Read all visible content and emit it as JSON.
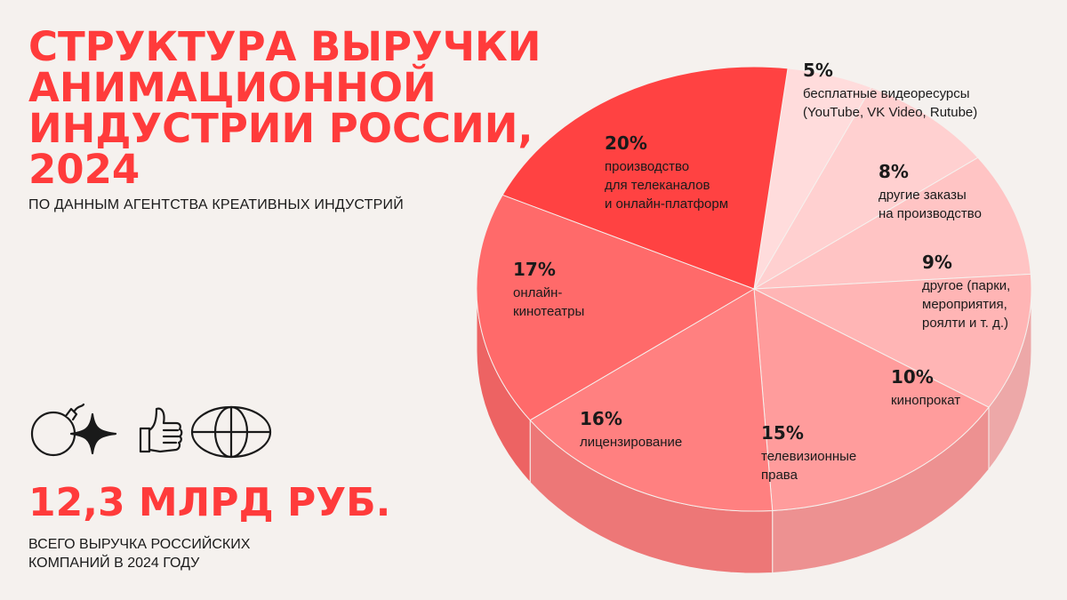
{
  "title_lines": [
    "СТРУКТУРА ВЫРУЧКИ",
    "АНИМАЦИОННОЙ",
    "ИНДУСТРИИ РОССИИ,",
    "2024"
  ],
  "subtitle": "ПО ДАННЫМ АГЕНТСТВА КРЕАТИВНЫХ ИНДУСТРИЙ",
  "icons": [
    "bomb-sparkle-icon",
    "thumbs-up-icon",
    "globe-icon"
  ],
  "total": {
    "value": "12,3 МЛРД РУБ.",
    "caption_lines": [
      "ВСЕГО ВЫРУЧКА РОССИЙСКИХ",
      "КОМПАНИЙ В 2024 ГОДУ"
    ]
  },
  "chart_data": {
    "type": "pie",
    "style": "3d",
    "slices": [
      {
        "value": 5,
        "pct": "5%",
        "label_lines": [
          "бесплатные видеоресурсы",
          "(YouTube, VK Video, Rutube)"
        ],
        "color": "#ffdcdc"
      },
      {
        "value": 8,
        "pct": "8%",
        "label_lines": [
          "другие заказы",
          "на производство"
        ],
        "color": "#ffd0d0"
      },
      {
        "value": 9,
        "pct": "9%",
        "label_lines": [
          "другое (парки,",
          "мероприятия,",
          "роялти и т. д.)"
        ],
        "color": "#ffc4c4"
      },
      {
        "value": 10,
        "pct": "10%",
        "label_lines": [
          "кинопрокат"
        ],
        "color": "#ffb5b5"
      },
      {
        "value": 15,
        "pct": "15%",
        "label_lines": [
          "телевизионные",
          "права"
        ],
        "color": "#ff9c9c"
      },
      {
        "value": 16,
        "pct": "16%",
        "label_lines": [
          "лицензирование"
        ],
        "color": "#ff8080"
      },
      {
        "value": 17,
        "pct": "17%",
        "label_lines": [
          "онлайн-",
          "кинотеатры"
        ],
        "color": "#ff6a6a"
      },
      {
        "value": 20,
        "pct": "20%",
        "label_lines": [
          "производство",
          "для телеканалов",
          "и онлайн-платформ"
        ],
        "color": "#ff4242"
      }
    ]
  }
}
